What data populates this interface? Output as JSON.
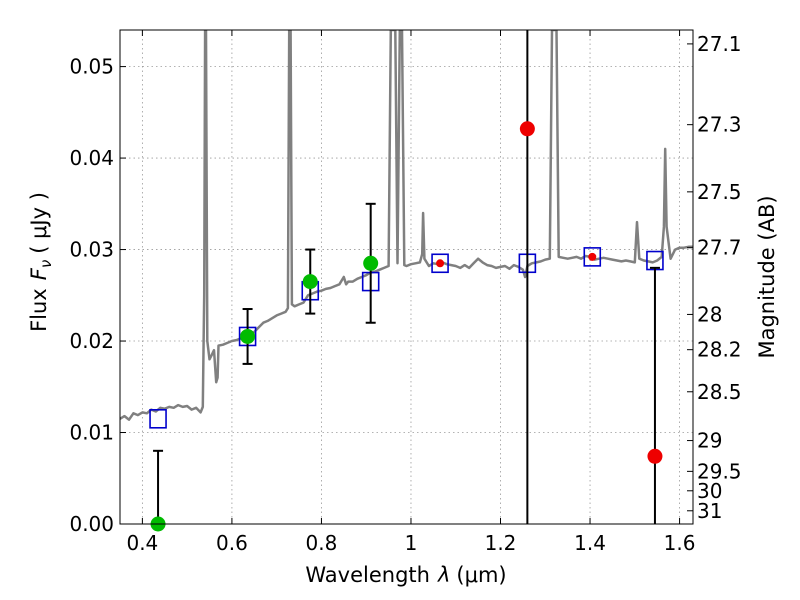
{
  "chart_data": {
    "type": "scatter",
    "xlabel_prefix": "Wavelength",
    "xlabel_symbol": "λ",
    "xlabel_unit": "(μm)",
    "ylabel_prefix": "Flux",
    "ylabel_symbol": "F",
    "ylabel_subscript": "ν",
    "ylabel_unit": "( μJy )",
    "ylabel_right": "Magnitude (AB)",
    "xlim": [
      0.35,
      1.63
    ],
    "ylim": [
      0.0,
      0.054
    ],
    "grid": true,
    "x_ticks": [
      0.4,
      0.6,
      0.8,
      1.0,
      1.2,
      1.4,
      1.6
    ],
    "x_tick_labels": [
      "0.4",
      "0.6",
      "0.8",
      "1",
      "1.2",
      "1.4",
      "1.6"
    ],
    "y_ticks": [
      0.0,
      0.01,
      0.02,
      0.03,
      0.04,
      0.05
    ],
    "y_tick_labels": [
      "0.00",
      "0.01",
      "0.02",
      "0.03",
      "0.04",
      "0.05"
    ],
    "right_ticks": [
      27.1,
      27.3,
      27.5,
      27.7,
      28,
      28.2,
      28.5,
      29,
      29.5,
      30,
      31
    ],
    "right_tick_labels": [
      "27.1",
      "27.3",
      "27.5",
      "27.7",
      "28",
      "28.2",
      "28.5",
      "29",
      "29.5",
      "30",
      "31"
    ],
    "colors": {
      "template": "#808080",
      "model_marker": "#0000cc",
      "detection": "#00bb00",
      "upper_limit": "#ee0000",
      "errorbar": "#000000",
      "grid": "#9a9a9a"
    },
    "series": [
      {
        "kind": "template_spectrum",
        "points": [
          [
            0.35,
            0.0115
          ],
          [
            0.36,
            0.0118
          ],
          [
            0.37,
            0.0114
          ],
          [
            0.38,
            0.0121
          ],
          [
            0.39,
            0.0119
          ],
          [
            0.4,
            0.0122
          ],
          [
            0.41,
            0.0121
          ],
          [
            0.42,
            0.0125
          ],
          [
            0.43,
            0.0123
          ],
          [
            0.44,
            0.0127
          ],
          [
            0.45,
            0.0126
          ],
          [
            0.46,
            0.0128
          ],
          [
            0.47,
            0.0127
          ],
          [
            0.48,
            0.013
          ],
          [
            0.49,
            0.0128
          ],
          [
            0.5,
            0.0129
          ],
          [
            0.51,
            0.0125
          ],
          [
            0.52,
            0.0127
          ],
          [
            0.53,
            0.0122
          ],
          [
            0.535,
            0.0128
          ],
          [
            0.538,
            0.025
          ],
          [
            0.54,
            0.054
          ],
          [
            0.542,
            0.054
          ],
          [
            0.545,
            0.02
          ],
          [
            0.55,
            0.018
          ],
          [
            0.555,
            0.0185
          ],
          [
            0.56,
            0.019
          ],
          [
            0.565,
            0.0155
          ],
          [
            0.568,
            0.016
          ],
          [
            0.57,
            0.0195
          ],
          [
            0.58,
            0.0196
          ],
          [
            0.59,
            0.0198
          ],
          [
            0.6,
            0.02
          ],
          [
            0.61,
            0.0201
          ],
          [
            0.62,
            0.0203
          ],
          [
            0.63,
            0.0205
          ],
          [
            0.64,
            0.0205
          ],
          [
            0.65,
            0.021
          ],
          [
            0.66,
            0.0215
          ],
          [
            0.67,
            0.022
          ],
          [
            0.68,
            0.0222
          ],
          [
            0.69,
            0.0225
          ],
          [
            0.7,
            0.0228
          ],
          [
            0.71,
            0.023
          ],
          [
            0.72,
            0.0232
          ],
          [
            0.725,
            0.0236
          ],
          [
            0.728,
            0.054
          ],
          [
            0.731,
            0.054
          ],
          [
            0.734,
            0.024
          ],
          [
            0.74,
            0.0238
          ],
          [
            0.75,
            0.024
          ],
          [
            0.76,
            0.0242
          ],
          [
            0.77,
            0.025
          ],
          [
            0.78,
            0.0252
          ],
          [
            0.79,
            0.0254
          ],
          [
            0.8,
            0.0255
          ],
          [
            0.81,
            0.0257
          ],
          [
            0.82,
            0.0258
          ],
          [
            0.83,
            0.026
          ],
          [
            0.84,
            0.0262
          ],
          [
            0.85,
            0.027
          ],
          [
            0.855,
            0.0262
          ],
          [
            0.86,
            0.0265
          ],
          [
            0.87,
            0.0265
          ],
          [
            0.88,
            0.0268
          ],
          [
            0.89,
            0.027
          ],
          [
            0.9,
            0.0272
          ],
          [
            0.91,
            0.0275
          ],
          [
            0.92,
            0.0276
          ],
          [
            0.93,
            0.0278
          ],
          [
            0.94,
            0.028
          ],
          [
            0.95,
            0.0282
          ],
          [
            0.955,
            0.054
          ],
          [
            0.965,
            0.054
          ],
          [
            0.97,
            0.0285
          ],
          [
            0.975,
            0.054
          ],
          [
            0.98,
            0.054
          ],
          [
            0.985,
            0.0283
          ],
          [
            0.99,
            0.0282
          ],
          [
            1.0,
            0.0284
          ],
          [
            1.01,
            0.0285
          ],
          [
            1.02,
            0.0286
          ],
          [
            1.025,
            0.0295
          ],
          [
            1.027,
            0.034
          ],
          [
            1.03,
            0.029
          ],
          [
            1.04,
            0.0282
          ],
          [
            1.05,
            0.0285
          ],
          [
            1.06,
            0.0284
          ],
          [
            1.07,
            0.0286
          ],
          [
            1.08,
            0.0284
          ],
          [
            1.09,
            0.0283
          ],
          [
            1.1,
            0.0282
          ],
          [
            1.11,
            0.028
          ],
          [
            1.12,
            0.0283
          ],
          [
            1.13,
            0.028
          ],
          [
            1.14,
            0.0285
          ],
          [
            1.15,
            0.029
          ],
          [
            1.16,
            0.0286
          ],
          [
            1.17,
            0.0283
          ],
          [
            1.18,
            0.0282
          ],
          [
            1.19,
            0.028
          ],
          [
            1.2,
            0.0281
          ],
          [
            1.21,
            0.0282
          ],
          [
            1.22,
            0.0279
          ],
          [
            1.23,
            0.0283
          ],
          [
            1.24,
            0.0281
          ],
          [
            1.25,
            0.0278
          ],
          [
            1.255,
            0.027
          ],
          [
            1.26,
            0.0282
          ],
          [
            1.27,
            0.0285
          ],
          [
            1.28,
            0.0286
          ],
          [
            1.29,
            0.0287
          ],
          [
            1.3,
            0.0289
          ],
          [
            1.31,
            0.029
          ],
          [
            1.315,
            0.054
          ],
          [
            1.325,
            0.054
          ],
          [
            1.33,
            0.0292
          ],
          [
            1.34,
            0.0291
          ],
          [
            1.35,
            0.029
          ],
          [
            1.36,
            0.0291
          ],
          [
            1.37,
            0.0292
          ],
          [
            1.38,
            0.029
          ],
          [
            1.39,
            0.0293
          ],
          [
            1.4,
            0.0292
          ],
          [
            1.41,
            0.0289
          ],
          [
            1.42,
            0.029
          ],
          [
            1.43,
            0.0291
          ],
          [
            1.44,
            0.029
          ],
          [
            1.45,
            0.0289
          ],
          [
            1.46,
            0.0288
          ],
          [
            1.47,
            0.0287
          ],
          [
            1.48,
            0.0288
          ],
          [
            1.49,
            0.0287
          ],
          [
            1.5,
            0.0286
          ],
          [
            1.505,
            0.033
          ],
          [
            1.51,
            0.029
          ],
          [
            1.52,
            0.0288
          ],
          [
            1.53,
            0.0287
          ],
          [
            1.54,
            0.0286
          ],
          [
            1.55,
            0.0288
          ],
          [
            1.56,
            0.0292
          ],
          [
            1.565,
            0.0325
          ],
          [
            1.568,
            0.041
          ],
          [
            1.571,
            0.0325
          ],
          [
            1.58,
            0.029
          ],
          [
            1.59,
            0.03
          ],
          [
            1.6,
            0.0302
          ],
          [
            1.61,
            0.0302
          ],
          [
            1.62,
            0.0303
          ],
          [
            1.63,
            0.0303
          ]
        ]
      },
      {
        "kind": "model_photometry",
        "x": [
          0.435,
          0.635,
          0.775,
          0.91,
          1.065,
          1.26,
          1.405,
          1.545
        ],
        "y": [
          0.0115,
          0.0205,
          0.0255,
          0.0265,
          0.0285,
          0.0285,
          0.0292,
          0.0288
        ]
      },
      {
        "kind": "observed_points",
        "points": [
          {
            "x": 0.435,
            "y": 0.0,
            "err_lo": 0.0,
            "err_hi": 0.008,
            "marker": "detection"
          },
          {
            "x": 0.635,
            "y": 0.0205,
            "err_lo": 0.003,
            "err_hi": 0.003,
            "marker": "detection"
          },
          {
            "x": 0.775,
            "y": 0.0265,
            "err_lo": 0.0035,
            "err_hi": 0.0035,
            "marker": "detection"
          },
          {
            "x": 0.91,
            "y": 0.0285,
            "err_lo": 0.0065,
            "err_hi": 0.0065,
            "marker": "detection"
          },
          {
            "x": 1.065,
            "y": 0.0285,
            "err_lo": 0.0,
            "err_hi": 0.0,
            "marker": "upper_limit"
          },
          {
            "x": 1.26,
            "y": 0.0432,
            "err_lo": 0.0432,
            "err_hi": 0.0108,
            "marker": "upper_limit"
          },
          {
            "x": 1.405,
            "y": 0.0292,
            "err_lo": 0.0,
            "err_hi": 0.0,
            "marker": "upper_limit"
          },
          {
            "x": 1.545,
            "y": 0.0074,
            "err_lo": 0.0074,
            "err_hi": 0.0206,
            "marker": "upper_limit"
          }
        ]
      }
    ]
  }
}
